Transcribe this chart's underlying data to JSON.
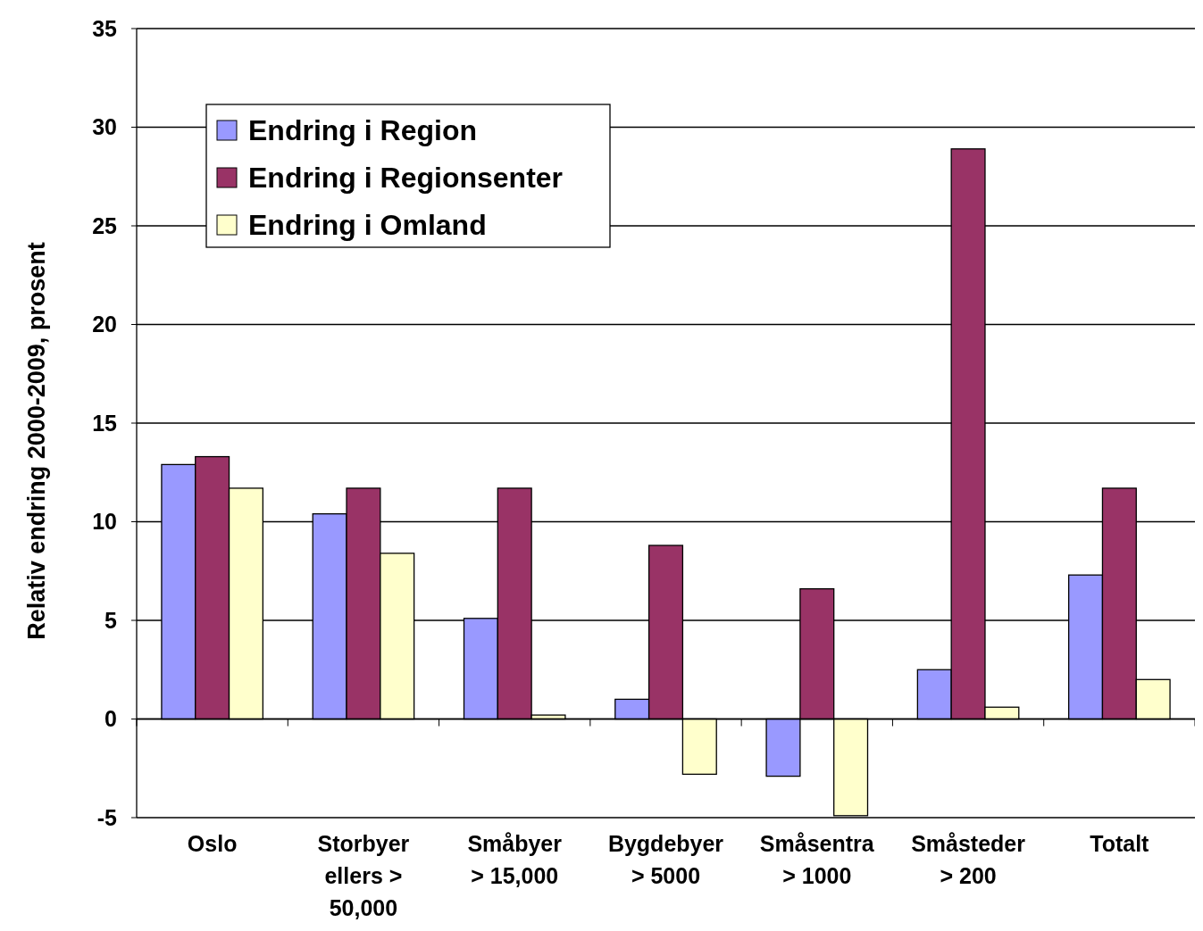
{
  "chart_data": {
    "type": "bar",
    "ylabel": "Relativ endring 2000-2009, prosent",
    "categories": [
      "Oslo",
      "Storbyer ellers > 50,000",
      "Småbyer > 15,000",
      "Bygdebyer > 5000",
      "Småsentra > 1000",
      "Småsteder > 200",
      "Totalt"
    ],
    "series": [
      {
        "name": "Endring i Region",
        "color": "#9999ff",
        "values": [
          12.9,
          10.4,
          5.1,
          1.0,
          -2.9,
          2.5,
          7.3
        ]
      },
      {
        "name": "Endring i Regionsenter",
        "color": "#993366",
        "values": [
          13.3,
          11.7,
          11.7,
          8.8,
          6.6,
          28.9,
          11.7
        ]
      },
      {
        "name": "Endring i Omland",
        "color": "#ffffcc",
        "values": [
          11.7,
          8.4,
          0.2,
          -2.8,
          -4.9,
          0.6,
          2.0
        ]
      }
    ],
    "ylim": [
      -5,
      35
    ],
    "yticks": [
      -5,
      0,
      5,
      10,
      15,
      20,
      25,
      30,
      35
    ],
    "grid": "y",
    "legend": "top left"
  }
}
